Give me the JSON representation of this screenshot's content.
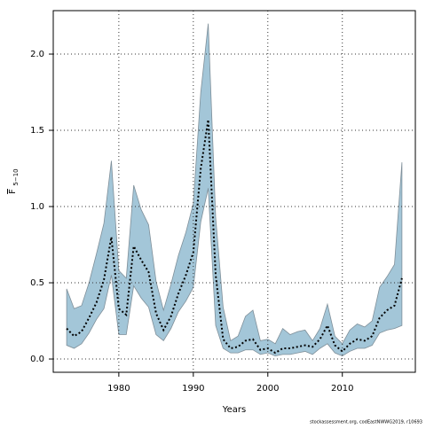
{
  "chart_data": {
    "type": "line",
    "y_label": "F",
    "y_label_subscript": "5−10",
    "x_label": "Years",
    "footnote": "stockassessment.org, codEastNWWG2019, r10693",
    "x": [
      1973,
      1974,
      1975,
      1976,
      1977,
      1978,
      1979,
      1980,
      1981,
      1982,
      1983,
      1984,
      1985,
      1986,
      1987,
      1988,
      1989,
      1990,
      1991,
      1992,
      1993,
      1994,
      1995,
      1996,
      1997,
      1998,
      1999,
      2000,
      2001,
      2002,
      2003,
      2004,
      2005,
      2006,
      2007,
      2008,
      2009,
      2010,
      2011,
      2012,
      2013,
      2014,
      2015,
      2016,
      2017,
      2018
    ],
    "values": [
      0.2,
      0.15,
      0.18,
      0.27,
      0.37,
      0.52,
      0.8,
      0.33,
      0.29,
      0.74,
      0.65,
      0.57,
      0.3,
      0.19,
      0.28,
      0.43,
      0.55,
      0.7,
      1.25,
      1.57,
      0.55,
      0.13,
      0.07,
      0.08,
      0.12,
      0.13,
      0.06,
      0.07,
      0.04,
      0.07,
      0.07,
      0.08,
      0.09,
      0.08,
      0.13,
      0.22,
      0.09,
      0.05,
      0.1,
      0.13,
      0.12,
      0.15,
      0.27,
      0.32,
      0.35,
      0.53
    ],
    "lower": [
      0.09,
      0.07,
      0.1,
      0.17,
      0.26,
      0.33,
      0.55,
      0.16,
      0.16,
      0.48,
      0.4,
      0.34,
      0.16,
      0.12,
      0.2,
      0.31,
      0.38,
      0.47,
      0.9,
      1.12,
      0.22,
      0.07,
      0.04,
      0.04,
      0.06,
      0.06,
      0.03,
      0.04,
      0.02,
      0.03,
      0.03,
      0.04,
      0.05,
      0.03,
      0.07,
      0.1,
      0.04,
      0.02,
      0.05,
      0.07,
      0.07,
      0.09,
      0.17,
      0.19,
      0.2,
      0.22
    ],
    "upper": [
      0.46,
      0.33,
      0.35,
      0.5,
      0.69,
      0.89,
      1.3,
      0.58,
      0.53,
      1.14,
      0.98,
      0.88,
      0.51,
      0.32,
      0.49,
      0.68,
      0.83,
      1.02,
      1.75,
      2.2,
      0.93,
      0.34,
      0.12,
      0.15,
      0.28,
      0.32,
      0.12,
      0.13,
      0.1,
      0.2,
      0.16,
      0.18,
      0.19,
      0.12,
      0.2,
      0.36,
      0.15,
      0.1,
      0.19,
      0.23,
      0.21,
      0.25,
      0.47,
      0.54,
      0.62,
      1.29
    ],
    "line_color": "#000000",
    "band_color": "#a3c6d8",
    "xlim": [
      1971.2,
      2019.8
    ],
    "xticks": [
      1980,
      1990,
      2000,
      2010
    ],
    "ylim": [
      -0.087,
      2.285
    ],
    "yticks": [
      {
        "value": 0,
        "label": "0.0"
      },
      0.5,
      {
        "value": 1,
        "label": "1.0"
      },
      1.5,
      {
        "value": 2,
        "label": "2.0"
      }
    ],
    "grid": true
  }
}
